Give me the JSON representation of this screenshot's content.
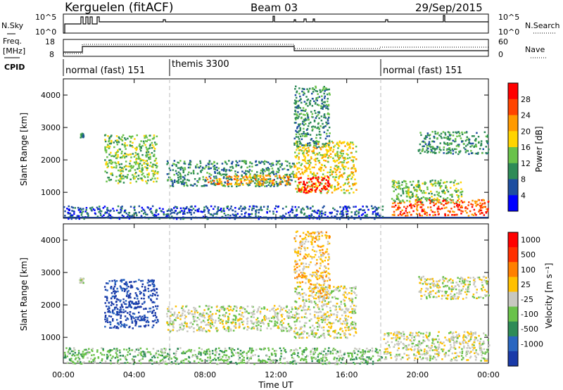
{
  "header": {
    "station": "Kerguelen (fitACF)",
    "beam": "Beam 03",
    "date": "29/Sep/2015"
  },
  "nsky_panel": {
    "label": "N.Sky",
    "ticks_left": [
      "10^5",
      "10^0"
    ],
    "ticks_right": [
      "10^5",
      "10^0"
    ],
    "right_label": "N.Search"
  },
  "freq_panel": {
    "label_line1": "Freq.",
    "label_line2": "[MHz]",
    "ticks_left": [
      "18",
      "8"
    ],
    "ticks_right": [
      "60",
      "0"
    ],
    "right_label": "Nave"
  },
  "cpid_panel": {
    "label": "CPID",
    "segments": [
      {
        "name": "normal (fast) 151",
        "start": 0,
        "end": 6
      },
      {
        "name": "themis 3300",
        "start": 6,
        "end": 18
      },
      {
        "name": "normal (fast) 151",
        "start": 18,
        "end": 24
      }
    ]
  },
  "power_panel": {
    "ylabel": "Slant Range [km]",
    "yticks": [
      "1000",
      "2000",
      "3000",
      "4000"
    ],
    "colorbar_label": "Power [dB]",
    "colorbar_ticks": [
      "4",
      "8",
      "12",
      "16",
      "20",
      "24",
      "28"
    ],
    "colors": [
      "#0000ff",
      "#1e4ea0",
      "#2e8b57",
      "#6ac24a",
      "#ffd400",
      "#ff9a00",
      "#ff4400",
      "#ff0000"
    ]
  },
  "velocity_panel": {
    "ylabel": "Slant Range [km]",
    "yticks": [
      "1000",
      "2000",
      "3000",
      "4000"
    ],
    "colorbar_label": "Velocity [m s⁻¹]",
    "colorbar_ticks": [
      "1000",
      "500",
      "100",
      "25",
      "-25",
      "-100",
      "-500",
      "-1000"
    ],
    "colors": [
      "#1a3aa8",
      "#2a66c0",
      "#2e8b57",
      "#6ac24a",
      "#c8c8c0",
      "#ffc000",
      "#ff8000",
      "#ff3000",
      "#ff0000"
    ]
  },
  "xaxis": {
    "ticks": [
      "00:00",
      "04:00",
      "08:00",
      "12:00",
      "16:00",
      "20:00",
      "00:00"
    ],
    "label": "Time UT"
  },
  "chart_data": {
    "type": "heatmap",
    "x_unit": "hours UT",
    "xlim": [
      0,
      24
    ],
    "ylim": [
      200,
      4500
    ],
    "power_blobs": [
      {
        "t0": 0.9,
        "t1": 1.1,
        "r0": 2700,
        "r1": 2850,
        "level": 2
      },
      {
        "t0": 2.3,
        "t1": 5.3,
        "r0": 1300,
        "r1": 2800,
        "level": 3
      },
      {
        "t0": 5.8,
        "t1": 13.0,
        "r0": 1200,
        "r1": 2000,
        "level": 2
      },
      {
        "t0": 8.0,
        "t1": 12.8,
        "r0": 1250,
        "r1": 1550,
        "level": 5
      },
      {
        "t0": 13.0,
        "t1": 16.5,
        "r0": 1000,
        "r1": 2600,
        "level": 4
      },
      {
        "t0": 13.2,
        "t1": 15.0,
        "r0": 1000,
        "r1": 1500,
        "level": 7
      },
      {
        "t0": 13.0,
        "t1": 15.0,
        "r0": 2400,
        "r1": 4300,
        "level": 2
      },
      {
        "t0": 18.5,
        "t1": 24.0,
        "r0": 300,
        "r1": 800,
        "level": 6
      },
      {
        "t0": 18.5,
        "t1": 22.5,
        "r0": 700,
        "r1": 1400,
        "level": 3
      },
      {
        "t0": 20.0,
        "t1": 24.0,
        "r0": 2200,
        "r1": 2900,
        "level": 2
      },
      {
        "t0": 0.0,
        "t1": 18.0,
        "r0": 200,
        "r1": 600,
        "level": 1
      }
    ],
    "velocity_blobs": [
      {
        "t0": 0.9,
        "t1": 1.1,
        "r0": 2700,
        "r1": 2850,
        "level": 4
      },
      {
        "t0": 2.3,
        "t1": 5.3,
        "r0": 1300,
        "r1": 2800,
        "level": 0
      },
      {
        "t0": 5.8,
        "t1": 13.0,
        "r0": 1200,
        "r1": 2000,
        "level": 4
      },
      {
        "t0": 13.0,
        "t1": 16.5,
        "r0": 1000,
        "r1": 2600,
        "level": 4
      },
      {
        "t0": 13.8,
        "t1": 15.0,
        "r0": 2200,
        "r1": 2700,
        "level": 5
      },
      {
        "t0": 13.0,
        "t1": 15.0,
        "r0": 2700,
        "r1": 4300,
        "level": 5
      },
      {
        "t0": 18.0,
        "t1": 24.0,
        "r0": 300,
        "r1": 1200,
        "level": 4
      },
      {
        "t0": 20.0,
        "t1": 24.0,
        "r0": 2200,
        "r1": 2900,
        "level": 4
      },
      {
        "t0": 0.0,
        "t1": 18.0,
        "r0": 200,
        "r1": 700,
        "level": 3
      }
    ]
  }
}
